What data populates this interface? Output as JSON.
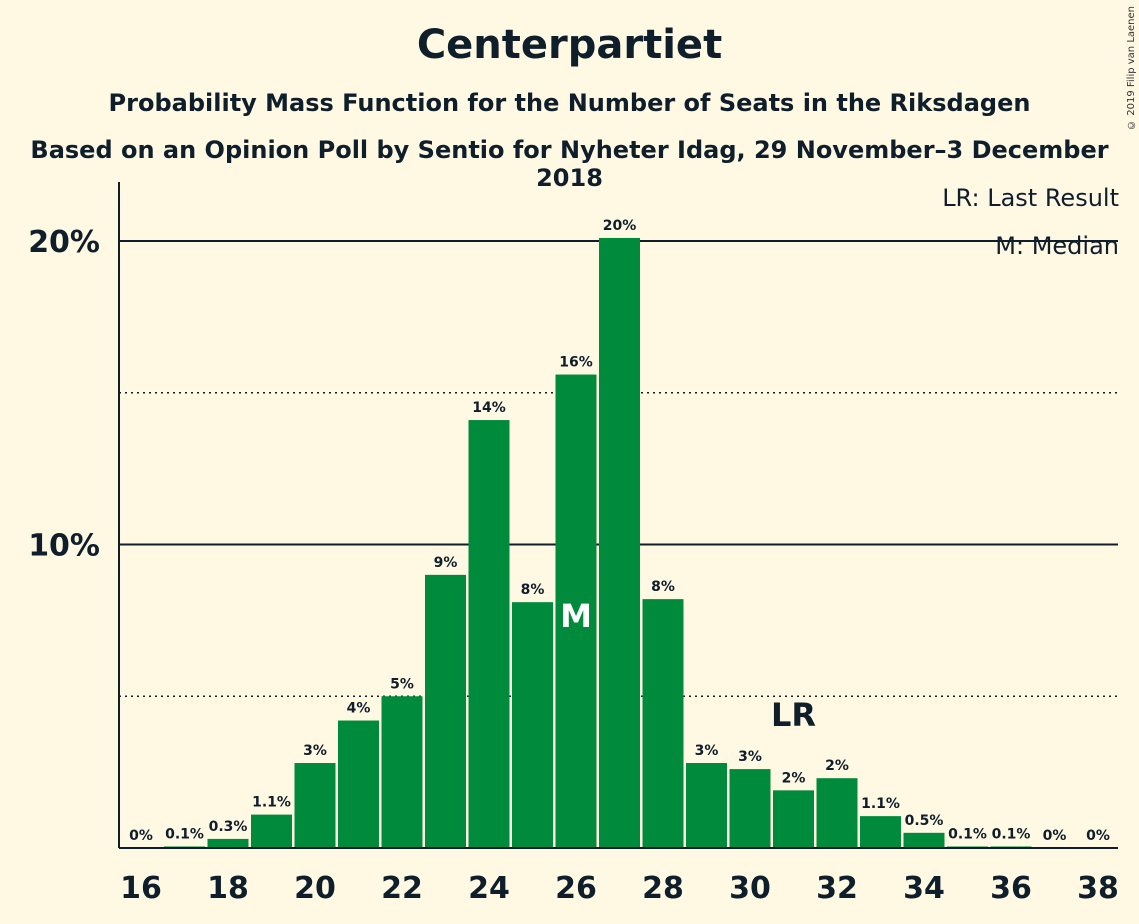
{
  "chart_data": {
    "type": "bar",
    "title": "Centerpartiet",
    "subtitle": "Probability Mass Function for the Number of Seats in the Riksdagen",
    "subtitle2": "Based on an Opinion Poll by Sentio for Nyheter Idag, 29 November–3 December 2018",
    "copyright": "© 2019 Filip van Laenen",
    "legend": [
      "LR: Last Result",
      "M: Median"
    ],
    "x": [
      16,
      17,
      18,
      19,
      20,
      21,
      22,
      23,
      24,
      25,
      26,
      27,
      28,
      29,
      30,
      31,
      32,
      33,
      34,
      35,
      36,
      37,
      38
    ],
    "values": [
      0,
      0.05,
      0.3,
      1.1,
      2.8,
      4.2,
      5.0,
      9.0,
      14.1,
      8.1,
      15.6,
      20.1,
      8.2,
      2.8,
      2.6,
      1.9,
      2.3,
      1.05,
      0.5,
      0.05,
      0.05,
      0,
      0
    ],
    "labels": [
      "0%",
      "0.1%",
      "0.3%",
      "1.1%",
      "3%",
      "4%",
      "5%",
      "9%",
      "14%",
      "8%",
      "16%",
      "20%",
      "8%",
      "3%",
      "3%",
      "2%",
      "2%",
      "1.1%",
      "0.5%",
      "0.1%",
      "0.1%",
      "0%",
      "0%"
    ],
    "xticks": [
      16,
      18,
      20,
      22,
      24,
      26,
      28,
      30,
      32,
      34,
      36,
      38
    ],
    "yticks": [
      {
        "value": 10,
        "label": "10%"
      },
      {
        "value": 20,
        "label": "20%"
      }
    ],
    "dotted_lines": [
      5,
      15
    ],
    "ylim": [
      0,
      22
    ],
    "median": 26,
    "median_label": "M",
    "last_result": 31,
    "last_result_label": "LR",
    "bar_color": "#008a3c",
    "background": "#fff8e3",
    "grid": true,
    "legend_position": "top-right"
  }
}
